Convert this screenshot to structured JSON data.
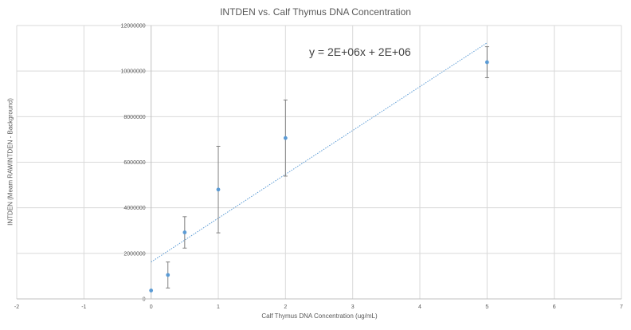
{
  "chart_data": {
    "type": "scatter",
    "title": "INTDEN vs. Calf Thymus DNA Concentration",
    "xlabel": "Calf Thymus DNA Concentration (ug/mL)",
    "ylabel": "INTDEN (Meam RAWINTDEN - Background)",
    "xlim": [
      -2,
      7
    ],
    "ylim": [
      0,
      12000000
    ],
    "xticks": [
      "-2",
      "-1",
      "0",
      "1",
      "2",
      "3",
      "4",
      "5",
      "6",
      "7"
    ],
    "xtick_values": [
      -2,
      -1,
      0,
      1,
      2,
      3,
      4,
      5,
      6,
      7
    ],
    "yticks": [
      "0",
      "2000000",
      "4000000",
      "6000000",
      "8000000",
      "10000000",
      "12000000"
    ],
    "ytick_values": [
      0,
      2000000,
      4000000,
      6000000,
      8000000,
      10000000,
      12000000
    ],
    "grid": true,
    "series": [
      {
        "x": [
          0,
          0.25,
          0.5,
          1,
          2,
          5
        ],
        "y": [
          370000,
          1050000,
          2920000,
          4800000,
          7060000,
          10390000
        ],
        "err_low": [
          370000,
          480000,
          2230000,
          2900000,
          5390000,
          9710000
        ],
        "err_high": [
          370000,
          1620000,
          3610000,
          6700000,
          8730000,
          11070000
        ],
        "color": "#5b9bd5"
      }
    ],
    "trendline": {
      "x_range": [
        0,
        5
      ],
      "y_start": 1620000,
      "y_end": 11240000,
      "color": "#5b9bd5",
      "style": "dotted"
    },
    "annotations": [
      {
        "text": "y = 2E+06x + 2E+06"
      }
    ],
    "gridline_color": "#d9d9d9",
    "error_bar_color": "#7f7f7f"
  }
}
